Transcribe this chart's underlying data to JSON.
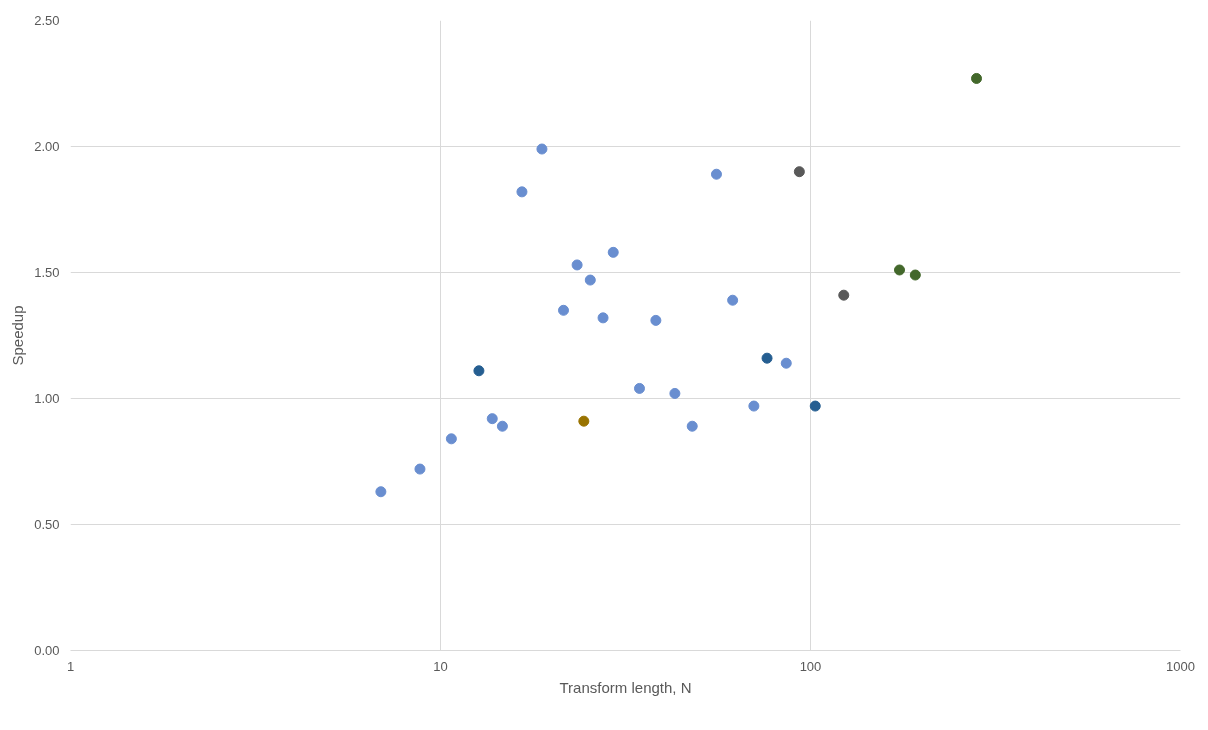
{
  "chart_data": {
    "type": "scatter",
    "xlabel": "Transform length, N",
    "ylabel": "Speedup",
    "log": "x",
    "grid": true,
    "marker": "circle",
    "xlim": [
      1,
      1000
    ],
    "xticks": [
      1,
      10,
      100,
      1000
    ],
    "ylim": [
      0,
      2.5
    ],
    "yticks": [
      {
        "value": 0,
        "label": "0.00"
      },
      {
        "value": 0.5,
        "label": "0.50"
      },
      {
        "value": 1,
        "label": "1.00"
      },
      {
        "value": 1.5,
        "label": "1.50"
      },
      {
        "value": 2,
        "label": "2.00"
      },
      {
        "value": 2.5,
        "label": "2.50"
      }
    ],
    "series": [
      {
        "color": "#595959",
        "x": [
          93.3,
          123
        ],
        "values": [
          1.9,
          1.41
        ]
      },
      {
        "color": "#997300",
        "x": [
          24.4
        ],
        "values": [
          0.91
        ]
      },
      {
        "color": "#255e91",
        "x": [
          12.7,
          76.3,
          103
        ],
        "values": [
          1.11,
          1.16,
          0.97
        ]
      },
      {
        "color": "#43682b",
        "x": [
          174,
          192,
          281
        ],
        "values": [
          1.51,
          1.49,
          2.27
        ]
      },
      {
        "color": "#698ed0",
        "x": [
          6.9,
          8.8,
          10.7,
          13.8,
          14.7,
          16.6,
          18.8,
          21.5,
          23.4,
          25.4,
          27.5,
          29.3,
          34.5,
          38.2,
          43.0,
          47.9,
          55.7,
          61.6,
          70.3,
          86
        ],
        "values": [
          0.63,
          0.72,
          0.84,
          0.92,
          0.89,
          1.82,
          1.99,
          1.35,
          1.53,
          1.47,
          1.32,
          1.58,
          1.04,
          1.31,
          1.02,
          0.89,
          1.89,
          1.39,
          0.97,
          1.14
        ]
      }
    ]
  }
}
